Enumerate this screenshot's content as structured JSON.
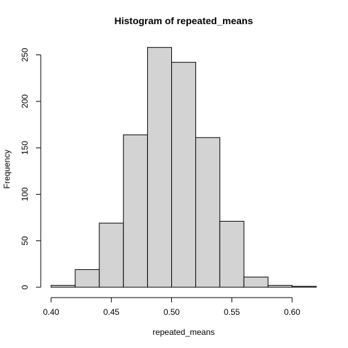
{
  "chart_data": {
    "type": "bar",
    "title": "Histogram of repeated_means",
    "xlabel": "repeated_means",
    "ylabel": "Frequency",
    "bin_edges": [
      0.4,
      0.42,
      0.44,
      0.46,
      0.48,
      0.5,
      0.52,
      0.54,
      0.56,
      0.58,
      0.6,
      0.62
    ],
    "values": [
      2,
      19,
      69,
      164,
      258,
      242,
      161,
      71,
      11,
      2,
      1
    ],
    "x_ticks": [
      "0.40",
      "0.45",
      "0.50",
      "0.55",
      "0.60"
    ],
    "y_ticks": [
      "0",
      "50",
      "100",
      "150",
      "200",
      "250"
    ],
    "xlim": [
      0.4,
      0.62
    ],
    "ylim": [
      0,
      260
    ],
    "grid": false,
    "bar_color": "#d3d3d3"
  }
}
